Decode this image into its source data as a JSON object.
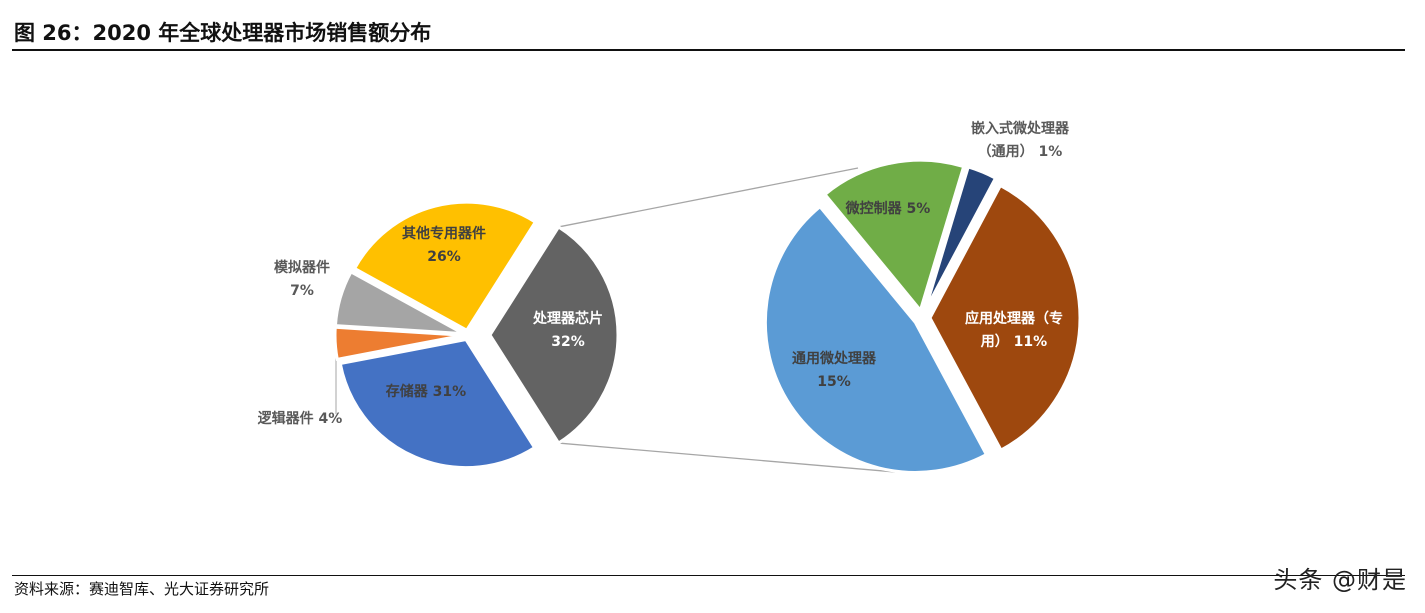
{
  "title": "图 26：2020 年全球处理器市场销售额分布",
  "source": "资料来源：赛迪智库、光大证券研究所",
  "watermark": "头条 @财是",
  "chart_data": [
    {
      "type": "pie",
      "slices": [
        {
          "label": "处理器芯片",
          "value": 32,
          "display": "32%",
          "color": "#636363",
          "exploded": true
        },
        {
          "label": "存储器",
          "value": 31,
          "display": "31%",
          "color": "#4472c4"
        },
        {
          "label": "逻辑器件",
          "value": 4,
          "display": "4%",
          "color": "#ed7d31"
        },
        {
          "label": "模拟器件",
          "value": 7,
          "display": "7%",
          "color": "#a5a5a5"
        },
        {
          "label": "其他专用器件",
          "value": 26,
          "display": "26%",
          "color": "#ffc000"
        }
      ]
    },
    {
      "type": "pie",
      "breakdown_of": "处理器芯片",
      "slices": [
        {
          "label": "通用微处理器",
          "value": 15,
          "display": "15%",
          "color": "#5b9bd5"
        },
        {
          "label": "微控制器",
          "value": 5,
          "display": "5%",
          "color": "#70ad47"
        },
        {
          "label": "嵌入式微处理器（通用）",
          "value": 1,
          "display": "1%",
          "color": "#264478"
        },
        {
          "label": "应用处理器（专用）",
          "value": 11,
          "display": "11%",
          "color": "#9e480e"
        }
      ]
    }
  ],
  "labels": {
    "proc": [
      "处理器芯片",
      "32%"
    ],
    "storage": [
      "存储器 31%"
    ],
    "logic": [
      "逻辑器件 4%"
    ],
    "analog": [
      "模拟器件",
      "7%"
    ],
    "other": [
      "其他专用器件",
      "26%"
    ],
    "general": [
      "通用微处理器",
      "15%"
    ],
    "mcu": [
      "微控制器 5%"
    ],
    "embedded": [
      "嵌入式微处理器",
      "（通用） 1%"
    ],
    "app": [
      "应用处理器（专",
      "用） 11%"
    ]
  }
}
